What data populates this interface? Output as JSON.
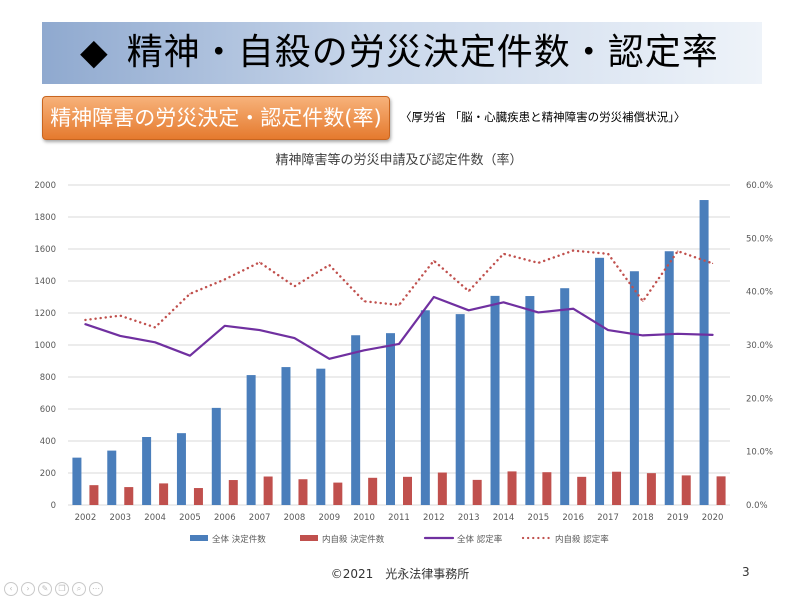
{
  "slide": {
    "bullet": "◆",
    "title": "精神・自殺の労災決定件数・認定率",
    "badge": "精神障害の労災決定・認定件数(率)",
    "source": "〈厚労省 「脳・心臓疾患と精神障害の労災補償状況」〉",
    "footer": "©2021　光永法律事務所",
    "page_number": "3",
    "controls": [
      "‹",
      "›",
      "✎",
      "❐",
      "⌕",
      "⋯"
    ]
  },
  "chart_data": {
    "type": "bar",
    "title": "精神障害等の労災申請及び認定件数（率）",
    "categories": [
      "2002",
      "2003",
      "2004",
      "2005",
      "2006",
      "2007",
      "2008",
      "2009",
      "2010",
      "2011",
      "2012",
      "2013",
      "2014",
      "2015",
      "2016",
      "2017",
      "2018",
      "2019",
      "2020"
    ],
    "y_left": {
      "min": 0,
      "max": 2000,
      "step": 200,
      "ticks": [
        "0",
        "200",
        "400",
        "600",
        "800",
        "1000",
        "1200",
        "1400",
        "1600",
        "1800",
        "2000"
      ]
    },
    "y_right": {
      "min": 0,
      "max": 60,
      "step": 10,
      "ticks": [
        "0.0%",
        "10.0%",
        "20.0%",
        "30.0%",
        "40.0%",
        "50.0%",
        "60.0%"
      ]
    },
    "grid": true,
    "legend_position": "bottom",
    "series": [
      {
        "name": "全体 決定件数",
        "kind": "bar",
        "axis": "left",
        "color": "#4a7ebb",
        "values": [
          296,
          340,
          425,
          449,
          607,
          812,
          862,
          852,
          1061,
          1074,
          1217,
          1193,
          1307,
          1306,
          1355,
          1545,
          1461,
          1586,
          1906
        ]
      },
      {
        "name": "内自殺 決定件数",
        "kind": "bar",
        "axis": "left",
        "color": "#c0504d",
        "values": [
          124,
          112,
          135,
          106,
          156,
          178,
          161,
          140,
          170,
          176,
          203,
          157,
          210,
          205,
          176,
          208,
          199,
          185,
          179
        ]
      },
      {
        "name": "全体 認定率",
        "kind": "line",
        "axis": "right",
        "color": "#7030a0",
        "values": [
          33.9,
          31.7,
          30.5,
          28.0,
          33.6,
          32.8,
          31.3,
          27.4,
          29.0,
          30.2,
          39.0,
          36.5,
          38.0,
          36.1,
          36.8,
          32.8,
          31.8,
          32.1,
          31.9
        ]
      },
      {
        "name": "内自殺 認定率",
        "kind": "dotted-line",
        "axis": "right",
        "color": "#c0504d",
        "values": [
          34.7,
          35.5,
          33.3,
          39.6,
          42.3,
          45.5,
          41.0,
          45.0,
          38.2,
          37.5,
          45.8,
          40.1,
          47.1,
          45.4,
          47.7,
          47.1,
          38.2,
          47.6,
          45.3
        ]
      }
    ]
  }
}
